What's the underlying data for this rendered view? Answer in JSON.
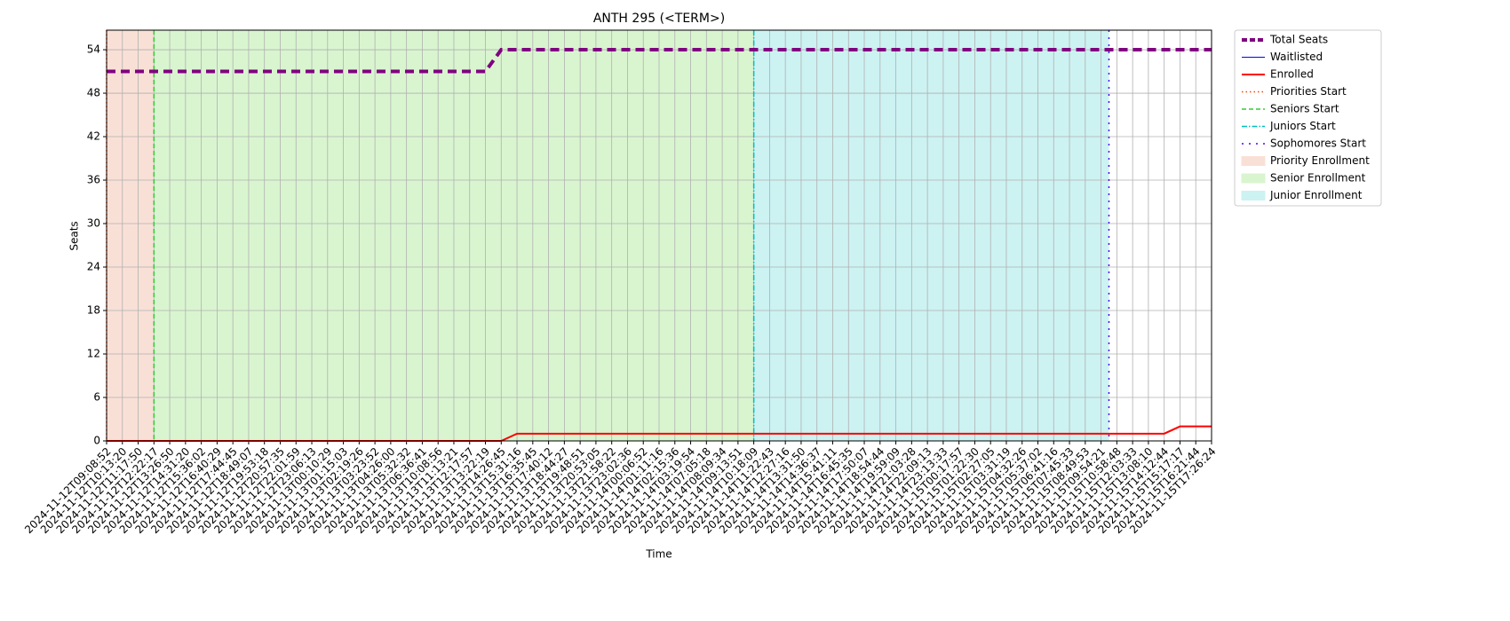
{
  "chart_data": {
    "type": "line",
    "title": "ANTH 295 (<TERM>)",
    "xlabel": "Time",
    "ylabel": "Seats",
    "categories": [
      "2024-11-12T09:08:52",
      "2024-11-12T10:13:20",
      "2024-11-12T11:17:50",
      "2024-11-12T12:22:17",
      "2024-11-12T13:26:50",
      "2024-11-12T14:31:20",
      "2024-11-12T15:36:02",
      "2024-11-12T16:40:29",
      "2024-11-12T17:44:45",
      "2024-11-12T18:49:07",
      "2024-11-12T19:53:18",
      "2024-11-12T20:57:35",
      "2024-11-12T22:01:59",
      "2024-11-12T23:06:13",
      "2024-11-13T00:10:29",
      "2024-11-13T01:15:03",
      "2024-11-13T02:19:26",
      "2024-11-13T03:23:52",
      "2024-11-13T04:26:00",
      "2024-11-13T05:32:32",
      "2024-11-13T06:36:41",
      "2024-11-13T10:08:56",
      "2024-11-13T11:13:21",
      "2024-11-13T12:17:57",
      "2024-11-13T13:22:19",
      "2024-11-13T14:26:45",
      "2024-11-13T15:31:16",
      "2024-11-13T16:35:45",
      "2024-11-13T17:40:12",
      "2024-11-13T18:44:27",
      "2024-11-13T19:48:51",
      "2024-11-13T20:53:05",
      "2024-11-13T21:58:22",
      "2024-11-13T23:02:36",
      "2024-11-14T00:06:52",
      "2024-11-14T01:11:16",
      "2024-11-14T02:15:36",
      "2024-11-14T03:19:54",
      "2024-11-14T07:05:18",
      "2024-11-14T08:09:34",
      "2024-11-14T09:13:51",
      "2024-11-14T10:18:09",
      "2024-11-14T11:22:43",
      "2024-11-14T12:27:16",
      "2024-11-14T13:31:50",
      "2024-11-14T14:36:37",
      "2024-11-14T15:41:11",
      "2024-11-14T16:45:35",
      "2024-11-14T17:50:07",
      "2024-11-14T18:54:44",
      "2024-11-14T19:59:09",
      "2024-11-14T21:03:28",
      "2024-11-14T22:09:13",
      "2024-11-14T23:13:33",
      "2024-11-15T00:17:57",
      "2024-11-15T01:22:30",
      "2024-11-15T02:27:05",
      "2024-11-15T03:31:19",
      "2024-11-15T04:32:26",
      "2024-11-15T05:37:02",
      "2024-11-15T06:41:16",
      "2024-11-15T07:45:33",
      "2024-11-15T08:49:53",
      "2024-11-15T09:54:21",
      "2024-11-15T10:58:48",
      "2024-11-15T12:03:33",
      "2024-11-15T13:08:10",
      "2024-11-15T14:12:44",
      "2024-11-15T15:17:17",
      "2024-11-15T16:21:44",
      "2024-11-15T17:26:24"
    ],
    "series": [
      {
        "name": "Total Seats",
        "color": "#800080",
        "width": 4,
        "dash": "10,6",
        "values": [
          51,
          51,
          51,
          51,
          51,
          51,
          51,
          51,
          51,
          51,
          51,
          51,
          51,
          51,
          51,
          51,
          51,
          51,
          51,
          51,
          51,
          51,
          51,
          51,
          51,
          54,
          54,
          54,
          54,
          54,
          54,
          54,
          54,
          54,
          54,
          54,
          54,
          54,
          54,
          54,
          54,
          54,
          54,
          54,
          54,
          54,
          54,
          54,
          54,
          54,
          54,
          54,
          54,
          54,
          54,
          54,
          54,
          54,
          54,
          54,
          54,
          54,
          54,
          54,
          54,
          54,
          54,
          54,
          54,
          54,
          54
        ]
      },
      {
        "name": "Waitlisted",
        "color": "#0000ff",
        "width": 1,
        "dash": "none",
        "values": [
          0,
          0,
          0,
          0,
          0,
          0,
          0,
          0,
          0,
          0,
          0,
          0,
          0,
          0,
          0,
          0,
          0,
          0,
          0,
          0,
          0,
          0,
          0,
          0,
          0,
          0,
          0,
          0,
          0,
          0,
          0,
          0,
          0,
          0,
          0,
          0,
          0,
          0,
          0,
          0,
          0,
          0,
          0,
          0,
          0,
          0,
          0,
          0,
          0,
          0,
          0,
          0,
          0,
          0,
          0,
          0,
          0,
          0,
          0,
          0,
          0,
          0,
          0,
          0,
          0,
          0,
          0,
          0,
          0,
          0,
          0
        ]
      },
      {
        "name": "Enrolled",
        "color": "#ff0000",
        "width": 2,
        "dash": "none",
        "values": [
          0,
          0,
          0,
          0,
          0,
          0,
          0,
          0,
          0,
          0,
          0,
          0,
          0,
          0,
          0,
          0,
          0,
          0,
          0,
          0,
          0,
          0,
          0,
          0,
          0,
          0,
          1,
          1,
          1,
          1,
          1,
          1,
          1,
          1,
          1,
          1,
          1,
          1,
          1,
          1,
          1,
          1,
          1,
          1,
          1,
          1,
          1,
          1,
          1,
          1,
          1,
          1,
          1,
          1,
          1,
          1,
          1,
          1,
          1,
          1,
          1,
          1,
          1,
          1,
          1,
          1,
          1,
          1,
          2,
          2,
          2
        ]
      }
    ],
    "vlines": [
      {
        "name": "Priorities Start",
        "x": 0,
        "color": "#ff4500",
        "dash": "1.5,3"
      },
      {
        "name": "Seniors Start",
        "x": 3,
        "color": "#32cd32",
        "dash": "5,3"
      },
      {
        "name": "Juniors Start",
        "x": 41,
        "color": "#00bfbf",
        "dash": "6,2,1.5,2"
      },
      {
        "name": "Sophomores Start",
        "x": 63.5,
        "color": "#5000ff",
        "dash": "2,6"
      }
    ],
    "spans": [
      {
        "name": "Priority Enrollment",
        "start": 0,
        "end": 3,
        "color": "#f9e0d6"
      },
      {
        "name": "Senior Enrollment",
        "start": 3,
        "end": 41,
        "color": "#d9f5d0"
      },
      {
        "name": "Junior Enrollment",
        "start": 41,
        "end": 63.5,
        "color": "#cdf2f2"
      }
    ],
    "ylim": [
      0,
      56.7
    ],
    "yticks": [
      0,
      6,
      12,
      18,
      24,
      30,
      36,
      42,
      48,
      54
    ],
    "grid": true,
    "legend": "outside-right"
  }
}
